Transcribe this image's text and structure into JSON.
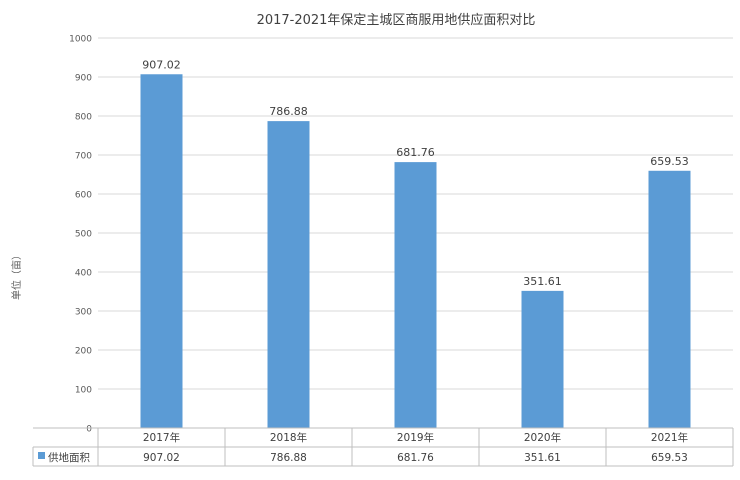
{
  "chart_data": {
    "type": "bar",
    "title": "2017-2021年保定主城区商服用地供应面积对比",
    "ylabel": "单位（亩）",
    "xlabel": "",
    "categories": [
      "2017年",
      "2018年",
      "2019年",
      "2020年",
      "2021年"
    ],
    "series": [
      {
        "name": "供地面积",
        "values": [
          907.02,
          786.88,
          681.76,
          351.61,
          659.53
        ],
        "color": "#5B9BD5"
      }
    ],
    "value_labels": [
      "907.02",
      "786.88",
      "681.76",
      "351.61",
      "659.53"
    ],
    "ylim": [
      0,
      1000
    ],
    "yticks": [
      0,
      100,
      200,
      300,
      400,
      500,
      600,
      700,
      800,
      900,
      1000
    ],
    "grid": true,
    "legend": "data-table-left",
    "data_table": true
  }
}
